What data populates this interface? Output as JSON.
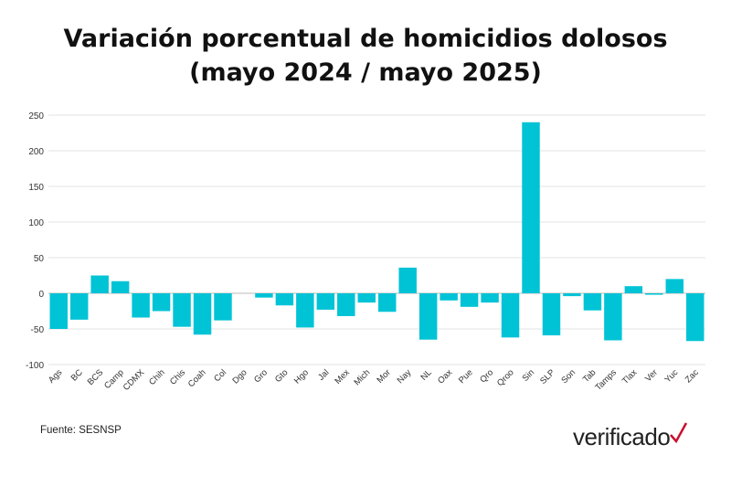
{
  "chart_data": {
    "type": "bar",
    "title": "Variación porcentual de homicidios dolosos",
    "subtitle": "(mayo 2024 / mayo 2025)",
    "xlabel": "",
    "ylabel": "",
    "ylim": [
      -100,
      250
    ],
    "yticks": [
      -100,
      -50,
      0,
      50,
      100,
      150,
      200,
      250
    ],
    "grid": true,
    "bar_color": "#00c3d6",
    "categories": [
      "Ags",
      "BC",
      "BCS",
      "Camp",
      "CDMX",
      "Chih",
      "Chis",
      "Coah",
      "Col",
      "Dgo",
      "Gro",
      "Gto",
      "Hgo",
      "Jal",
      "Mex",
      "Mich",
      "Mor",
      "Nay",
      "NL",
      "Oax",
      "Pue",
      "Qro",
      "Qroo",
      "Sin",
      "SLP",
      "Son",
      "Tab",
      "Tamps",
      "Tlax",
      "Ver",
      "Yuc",
      "Zac"
    ],
    "values": [
      -50,
      -37,
      25,
      17,
      -34,
      -25,
      -47,
      -58,
      -38,
      0,
      -6,
      -17,
      -48,
      -23,
      -32,
      -13,
      -26,
      36,
      -65,
      -10,
      -19,
      -13,
      -62,
      240,
      -59,
      -4,
      -24,
      -66,
      10,
      -2,
      20,
      -67
    ]
  },
  "footer": {
    "source": "Fuente: SESNSP",
    "logo": "verificado"
  }
}
